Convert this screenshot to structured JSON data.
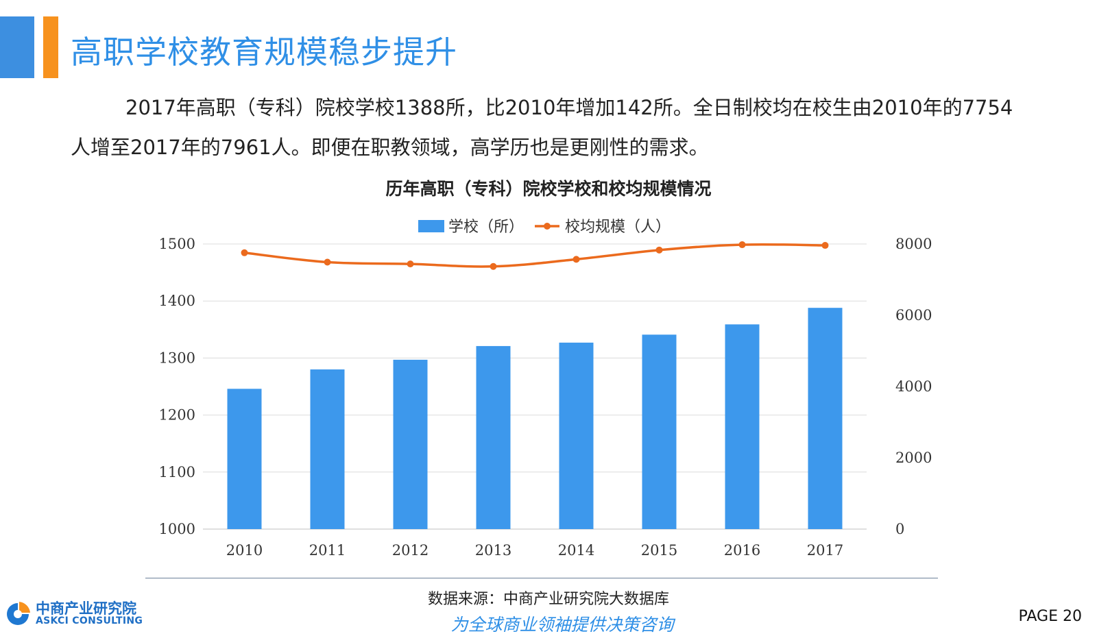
{
  "header": {
    "title": "高职学校教育规模稳步提升"
  },
  "paragraph": {
    "text": "2017年高职（专科）院校学校1388所，比2010年增加142所。全日制校均在校生由2010年的7754人增至2017年的7961人。即便在职教领域，高学历也是更刚性的需求。"
  },
  "chart_data": {
    "type": "bar",
    "title": "历年高职（专科）院校学校和校均规模情况",
    "categories": [
      "2010",
      "2011",
      "2012",
      "2013",
      "2014",
      "2015",
      "2016",
      "2017"
    ],
    "series": [
      {
        "name": "学校（所）",
        "type": "bar",
        "axis": "left",
        "color": "#3d98ec",
        "values": [
          1246,
          1280,
          1297,
          1321,
          1327,
          1341,
          1359,
          1388
        ]
      },
      {
        "name": "校均规模（人）",
        "type": "line",
        "axis": "right",
        "color": "#eb6a1d",
        "values": [
          7754,
          7490,
          7440,
          7370,
          7570,
          7830,
          7980,
          7961
        ]
      }
    ],
    "y_left": {
      "min": 1000,
      "max": 1500,
      "ticks": [
        "1000",
        "1100",
        "1200",
        "1300",
        "1400",
        "1500"
      ]
    },
    "y_right": {
      "min": 0,
      "max": 8000,
      "ticks": [
        "0",
        "2000",
        "4000",
        "6000",
        "8000"
      ]
    },
    "grid": true,
    "legend": "top"
  },
  "footer": {
    "source": "数据来源：中商产业研究院大数据库",
    "slogan": "为全球商业领袖提供决策咨询",
    "logo_cn": "中商产业研究院",
    "logo_en": "ASKCI CONSULTING",
    "page_label": "PAGE  20"
  }
}
